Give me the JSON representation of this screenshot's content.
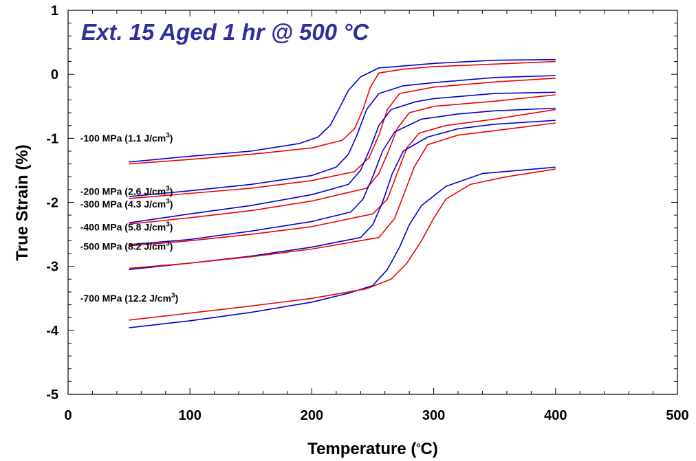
{
  "chart_data": {
    "type": "line",
    "title": "Ext. 15 Aged 1 hr @ 500 °C",
    "xlabel": {
      "main": "Temperature (",
      "sup": "o",
      "end": "C)"
    },
    "ylabel": "True Strain (%)",
    "xlim": [
      0,
      500
    ],
    "ylim": [
      -5,
      1
    ],
    "xticks": [
      0,
      100,
      200,
      300,
      400,
      500
    ],
    "yticks": [
      -5,
      -4,
      -3,
      -2,
      -1,
      0,
      1
    ],
    "grid": false,
    "colors": {
      "title": "#2e2e9e",
      "blue": "#0000cc",
      "red": "#ee0000"
    },
    "annotations": [
      {
        "stress": "-100 MPa",
        "energy": "(1.1 J/cm",
        "sup": "3",
        "close": ")",
        "x": 10,
        "y": -1.05
      },
      {
        "stress": "-200 MPa",
        "energy": "(2.6 J/cm",
        "sup": "3",
        "close": ")",
        "x": 10,
        "y": -1.88
      },
      {
        "stress": "-300 MPa",
        "energy": "(4.3 J/cm",
        "sup": "3",
        "close": ")",
        "x": 10,
        "y": -2.08
      },
      {
        "stress": "-400 MPa",
        "energy": "(5.8 J/cm",
        "sup": "3",
        "close": ")",
        "x": 10,
        "y": -2.44
      },
      {
        "stress": "-500 MPa",
        "energy": "(8.2 J/cm",
        "sup": "3",
        "close": ")",
        "x": 10,
        "y": -2.74
      },
      {
        "stress": "-700 MPa",
        "energy": "(12.2 J/cm",
        "sup": "3",
        "close": ")",
        "x": 10,
        "y": -3.55
      }
    ],
    "series": [
      {
        "stress": "-100 MPa",
        "kind": "blue",
        "points": [
          [
            50,
            -1.37
          ],
          [
            100,
            -1.28
          ],
          [
            150,
            -1.2
          ],
          [
            190,
            -1.08
          ],
          [
            205,
            -0.98
          ],
          [
            215,
            -0.8
          ],
          [
            222,
            -0.55
          ],
          [
            230,
            -0.25
          ],
          [
            240,
            -0.04
          ],
          [
            255,
            0.1
          ],
          [
            300,
            0.17
          ],
          [
            350,
            0.22
          ],
          [
            400,
            0.23
          ]
        ]
      },
      {
        "stress": "-100 MPa",
        "kind": "red",
        "points": [
          [
            50,
            -1.4
          ],
          [
            100,
            -1.33
          ],
          [
            150,
            -1.25
          ],
          [
            200,
            -1.15
          ],
          [
            225,
            -1.03
          ],
          [
            235,
            -0.85
          ],
          [
            242,
            -0.55
          ],
          [
            248,
            -0.2
          ],
          [
            255,
            0.02
          ],
          [
            275,
            0.08
          ],
          [
            300,
            0.12
          ],
          [
            350,
            0.16
          ],
          [
            400,
            0.2
          ]
        ]
      },
      {
        "stress": "-200 MPa",
        "kind": "blue",
        "points": [
          [
            50,
            -1.91
          ],
          [
            100,
            -1.82
          ],
          [
            150,
            -1.72
          ],
          [
            200,
            -1.58
          ],
          [
            220,
            -1.45
          ],
          [
            230,
            -1.25
          ],
          [
            237,
            -0.95
          ],
          [
            245,
            -0.55
          ],
          [
            255,
            -0.3
          ],
          [
            275,
            -0.18
          ],
          [
            300,
            -0.13
          ],
          [
            350,
            -0.05
          ],
          [
            400,
            -0.02
          ]
        ]
      },
      {
        "stress": "-200 MPa",
        "kind": "red",
        "points": [
          [
            50,
            -1.94
          ],
          [
            100,
            -1.86
          ],
          [
            150,
            -1.78
          ],
          [
            200,
            -1.66
          ],
          [
            235,
            -1.52
          ],
          [
            247,
            -1.3
          ],
          [
            255,
            -0.95
          ],
          [
            262,
            -0.55
          ],
          [
            272,
            -0.3
          ],
          [
            300,
            -0.2
          ],
          [
            350,
            -0.12
          ],
          [
            400,
            -0.06
          ]
        ]
      },
      {
        "stress": "-300 MPa",
        "kind": "blue",
        "points": [
          [
            50,
            -2.32
          ],
          [
            100,
            -2.18
          ],
          [
            150,
            -2.05
          ],
          [
            200,
            -1.88
          ],
          [
            230,
            -1.72
          ],
          [
            240,
            -1.5
          ],
          [
            248,
            -1.15
          ],
          [
            255,
            -0.8
          ],
          [
            265,
            -0.55
          ],
          [
            285,
            -0.43
          ],
          [
            300,
            -0.38
          ],
          [
            350,
            -0.3
          ],
          [
            400,
            -0.28
          ]
        ]
      },
      {
        "stress": "-300 MPa",
        "kind": "red",
        "points": [
          [
            50,
            -2.34
          ],
          [
            100,
            -2.24
          ],
          [
            150,
            -2.13
          ],
          [
            200,
            -1.98
          ],
          [
            245,
            -1.78
          ],
          [
            255,
            -1.55
          ],
          [
            263,
            -1.2
          ],
          [
            270,
            -0.85
          ],
          [
            280,
            -0.6
          ],
          [
            300,
            -0.5
          ],
          [
            350,
            -0.42
          ],
          [
            400,
            -0.32
          ]
        ]
      },
      {
        "stress": "-400 MPa",
        "kind": "blue",
        "points": [
          [
            50,
            -2.66
          ],
          [
            100,
            -2.58
          ],
          [
            150,
            -2.45
          ],
          [
            200,
            -2.3
          ],
          [
            232,
            -2.15
          ],
          [
            242,
            -1.95
          ],
          [
            250,
            -1.6
          ],
          [
            258,
            -1.2
          ],
          [
            268,
            -0.9
          ],
          [
            290,
            -0.7
          ],
          [
            320,
            -0.62
          ],
          [
            350,
            -0.57
          ],
          [
            400,
            -0.53
          ]
        ]
      },
      {
        "stress": "-400 MPa",
        "kind": "red",
        "points": [
          [
            50,
            -2.68
          ],
          [
            100,
            -2.6
          ],
          [
            150,
            -2.5
          ],
          [
            200,
            -2.38
          ],
          [
            250,
            -2.18
          ],
          [
            262,
            -1.95
          ],
          [
            270,
            -1.55
          ],
          [
            278,
            -1.15
          ],
          [
            288,
            -0.92
          ],
          [
            310,
            -0.8
          ],
          [
            350,
            -0.7
          ],
          [
            400,
            -0.55
          ]
        ]
      },
      {
        "stress": "-500 MPa",
        "kind": "blue",
        "points": [
          [
            50,
            -3.05
          ],
          [
            100,
            -2.95
          ],
          [
            150,
            -2.84
          ],
          [
            200,
            -2.7
          ],
          [
            240,
            -2.55
          ],
          [
            250,
            -2.35
          ],
          [
            258,
            -2.0
          ],
          [
            266,
            -1.55
          ],
          [
            275,
            -1.2
          ],
          [
            295,
            -0.98
          ],
          [
            320,
            -0.85
          ],
          [
            350,
            -0.78
          ],
          [
            400,
            -0.72
          ]
        ]
      },
      {
        "stress": "-500 MPa",
        "kind": "red",
        "points": [
          [
            50,
            -3.03
          ],
          [
            100,
            -2.95
          ],
          [
            150,
            -2.85
          ],
          [
            200,
            -2.73
          ],
          [
            255,
            -2.55
          ],
          [
            268,
            -2.25
          ],
          [
            276,
            -1.85
          ],
          [
            284,
            -1.45
          ],
          [
            295,
            -1.1
          ],
          [
            320,
            -0.95
          ],
          [
            350,
            -0.88
          ],
          [
            400,
            -0.76
          ]
        ]
      },
      {
        "stress": "-700 MPa",
        "kind": "blue",
        "points": [
          [
            50,
            -3.96
          ],
          [
            100,
            -3.85
          ],
          [
            150,
            -3.72
          ],
          [
            200,
            -3.56
          ],
          [
            230,
            -3.42
          ],
          [
            250,
            -3.3
          ],
          [
            262,
            -3.05
          ],
          [
            272,
            -2.7
          ],
          [
            280,
            -2.35
          ],
          [
            290,
            -2.05
          ],
          [
            310,
            -1.75
          ],
          [
            340,
            -1.55
          ],
          [
            370,
            -1.5
          ],
          [
            400,
            -1.45
          ]
        ]
      },
      {
        "stress": "-700 MPa",
        "kind": "red",
        "points": [
          [
            50,
            -3.84
          ],
          [
            100,
            -3.73
          ],
          [
            150,
            -3.62
          ],
          [
            200,
            -3.5
          ],
          [
            245,
            -3.35
          ],
          [
            265,
            -3.2
          ],
          [
            278,
            -2.95
          ],
          [
            290,
            -2.6
          ],
          [
            300,
            -2.25
          ],
          [
            310,
            -1.95
          ],
          [
            330,
            -1.72
          ],
          [
            360,
            -1.6
          ],
          [
            400,
            -1.48
          ]
        ]
      }
    ]
  }
}
